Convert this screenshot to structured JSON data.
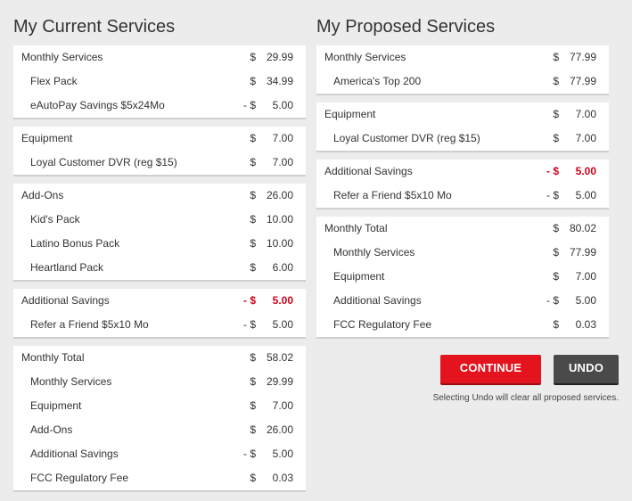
{
  "current": {
    "title": "My Current Services",
    "sections": [
      {
        "rows": [
          {
            "label": "Monthly Services",
            "sign": "$",
            "amount": "29.99",
            "sub": false
          },
          {
            "label": "Flex Pack",
            "sign": "$",
            "amount": "34.99",
            "sub": true
          },
          {
            "label": "eAutoPay Savings $5x24Mo",
            "sign": "- $",
            "amount": "5.00",
            "sub": true
          }
        ]
      },
      {
        "rows": [
          {
            "label": "Equipment",
            "sign": "$",
            "amount": "7.00",
            "sub": false
          },
          {
            "label": "Loyal Customer DVR (reg $15)",
            "sign": "$",
            "amount": "7.00",
            "sub": true
          }
        ]
      },
      {
        "rows": [
          {
            "label": "Add-Ons",
            "sign": "$",
            "amount": "26.00",
            "sub": false
          },
          {
            "label": "Kid's Pack",
            "sign": "$",
            "amount": "10.00",
            "sub": true
          },
          {
            "label": "Latino Bonus Pack",
            "sign": "$",
            "amount": "10.00",
            "sub": true
          },
          {
            "label": "Heartland Pack",
            "sign": "$",
            "amount": "6.00",
            "sub": true
          }
        ]
      },
      {
        "rows": [
          {
            "label": "Additional Savings",
            "sign": "- $",
            "amount": "5.00",
            "sub": false,
            "red": true
          },
          {
            "label": "Refer a Friend $5x10 Mo",
            "sign": "- $",
            "amount": "5.00",
            "sub": true
          }
        ]
      },
      {
        "rows": [
          {
            "label": "Monthly Total",
            "sign": "$",
            "amount": "58.02",
            "sub": false
          },
          {
            "label": "Monthly Services",
            "sign": "$",
            "amount": "29.99",
            "sub": true
          },
          {
            "label": "Equipment",
            "sign": "$",
            "amount": "7.00",
            "sub": true
          },
          {
            "label": "Add-Ons",
            "sign": "$",
            "amount": "26.00",
            "sub": true
          },
          {
            "label": "Additional Savings",
            "sign": "- $",
            "amount": "5.00",
            "sub": true
          },
          {
            "label": "FCC Regulatory Fee",
            "sign": "$",
            "amount": "0.03",
            "sub": true
          }
        ]
      }
    ]
  },
  "proposed": {
    "title": "My Proposed Services",
    "sections": [
      {
        "rows": [
          {
            "label": "Monthly Services",
            "sign": "$",
            "amount": "77.99",
            "sub": false
          },
          {
            "label": "America's Top 200",
            "sign": "$",
            "amount": "77.99",
            "sub": true
          }
        ]
      },
      {
        "rows": [
          {
            "label": "Equipment",
            "sign": "$",
            "amount": "7.00",
            "sub": false
          },
          {
            "label": "Loyal Customer DVR (reg $15)",
            "sign": "$",
            "amount": "7.00",
            "sub": true
          }
        ]
      },
      {
        "rows": [
          {
            "label": "Additional Savings",
            "sign": "- $",
            "amount": "5.00",
            "sub": false,
            "red": true
          },
          {
            "label": "Refer a Friend $5x10 Mo",
            "sign": "- $",
            "amount": "5.00",
            "sub": true
          }
        ]
      },
      {
        "rows": [
          {
            "label": "Monthly Total",
            "sign": "$",
            "amount": "80.02",
            "sub": false
          },
          {
            "label": "Monthly Services",
            "sign": "$",
            "amount": "77.99",
            "sub": true
          },
          {
            "label": "Equipment",
            "sign": "$",
            "amount": "7.00",
            "sub": true
          },
          {
            "label": "Additional Savings",
            "sign": "- $",
            "amount": "5.00",
            "sub": true
          },
          {
            "label": "FCC Regulatory Fee",
            "sign": "$",
            "amount": "0.03",
            "sub": true
          }
        ]
      }
    ]
  },
  "actions": {
    "continue_label": "CONTINUE",
    "undo_label": "UNDO",
    "note": "Selecting Undo will clear all proposed services."
  },
  "colors": {
    "accent_red": "#e3141e",
    "savings_red": "#d0021b",
    "undo_gray": "#4a4a4a",
    "background": "#ececec"
  }
}
